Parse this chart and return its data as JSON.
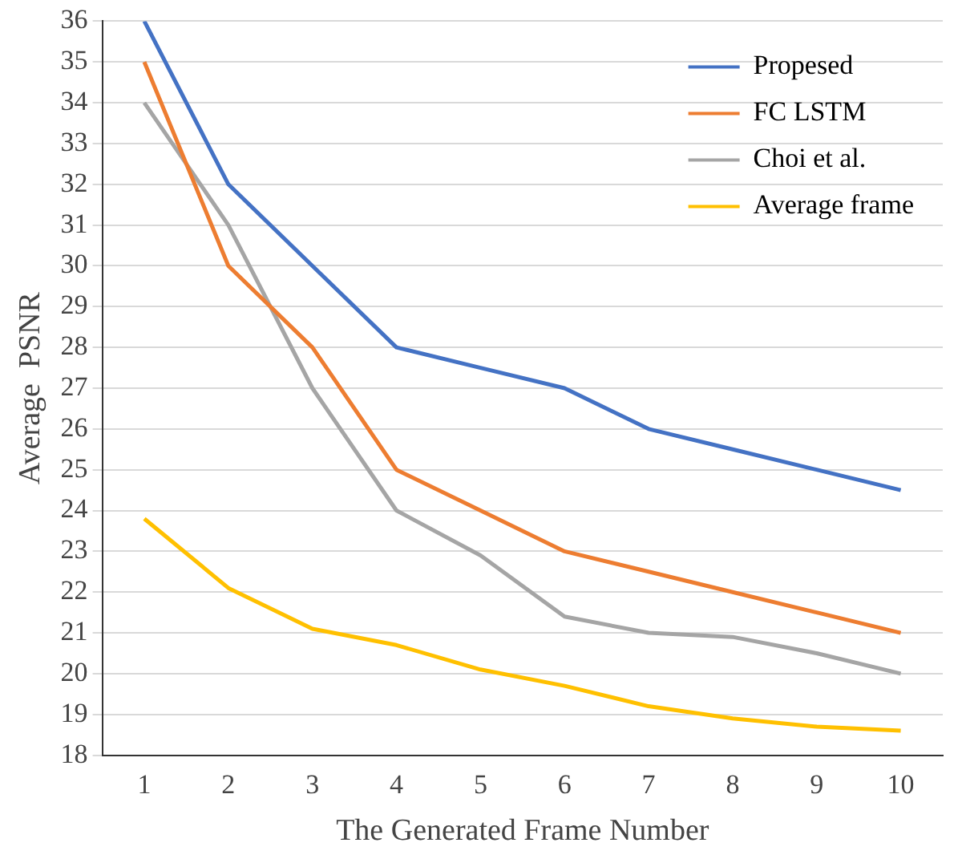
{
  "chart_data": {
    "type": "line",
    "xlabel": "The Generated Frame Number",
    "ylabel": "Average  PSNR",
    "categories": [
      "1",
      "2",
      "3",
      "4",
      "5",
      "6",
      "7",
      "8",
      "9",
      "10"
    ],
    "series": [
      {
        "name": "Propesed",
        "color": "#4472c4",
        "values": [
          36,
          32,
          30,
          28,
          27.5,
          27,
          26,
          25.5,
          25,
          24.5
        ]
      },
      {
        "name": "FC LSTM",
        "color": "#ed7d31",
        "values": [
          35,
          30,
          28,
          25,
          24,
          23,
          22.5,
          22,
          21.5,
          21
        ]
      },
      {
        "name": "Choi et al.",
        "color": "#a5a5a5",
        "values": [
          34,
          31,
          27,
          24,
          22.9,
          21.4,
          21,
          20.9,
          20.5,
          20
        ]
      },
      {
        "name": "Average frame",
        "color": "#ffc000",
        "values": [
          23.8,
          22.1,
          21.1,
          20.7,
          20.1,
          19.7,
          19.2,
          18.9,
          18.7,
          18.6
        ]
      }
    ],
    "ylim": [
      18,
      36
    ],
    "yticks": [
      18,
      19,
      20,
      21,
      22,
      23,
      24,
      25,
      26,
      27,
      28,
      29,
      30,
      31,
      32,
      33,
      34,
      35,
      36
    ],
    "grid": "y",
    "legend": "top right",
    "marker": "none",
    "line_style": "solid"
  }
}
